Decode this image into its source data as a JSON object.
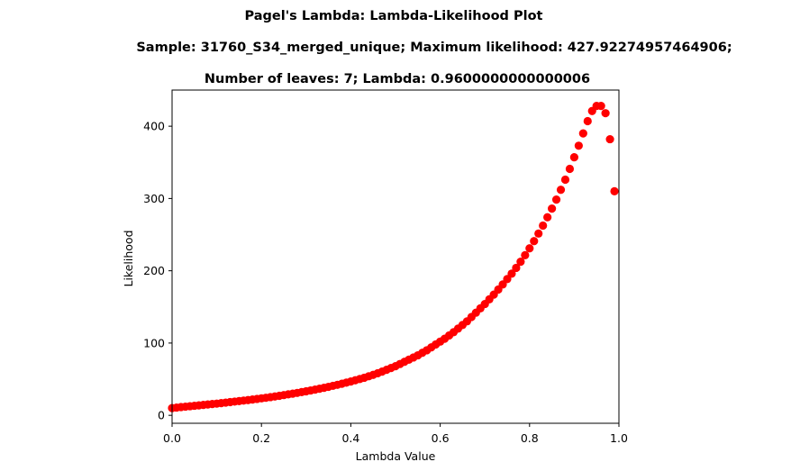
{
  "chart_data": {
    "type": "scatter",
    "title_lines": [
      "Pagel's Lambda: Lambda-Likelihood Plot",
      "Sample: 31760_S34_merged_unique; Maximum likelihood: 427.92274957464906;",
      "Number of leaves: 7; Lambda: 0.9600000000000006"
    ],
    "xlabel": "Lambda Value",
    "ylabel": "Likelihood",
    "xlim": [
      0.0,
      1.0
    ],
    "ylim": [
      -11,
      450
    ],
    "xticks": [
      0.0,
      0.2,
      0.4,
      0.6,
      0.8,
      1.0
    ],
    "xtick_labels": [
      "0.0",
      "0.2",
      "0.4",
      "0.6",
      "0.8",
      "1.0"
    ],
    "yticks": [
      0,
      100,
      200,
      300,
      400
    ],
    "ytick_labels": [
      "0",
      "100",
      "200",
      "300",
      "400"
    ],
    "grid": false,
    "marker_color": "#ff0000",
    "series": [
      {
        "x": [
          0.0,
          0.01,
          0.02,
          0.03,
          0.04,
          0.05,
          0.06,
          0.07,
          0.08,
          0.09,
          0.1,
          0.11,
          0.12,
          0.13,
          0.14,
          0.15,
          0.16,
          0.17,
          0.18,
          0.19,
          0.2,
          0.21,
          0.22,
          0.23,
          0.24,
          0.25,
          0.26,
          0.27,
          0.28,
          0.29,
          0.3,
          0.31,
          0.32,
          0.33,
          0.34,
          0.35,
          0.36,
          0.37,
          0.38,
          0.39,
          0.4,
          0.41,
          0.42,
          0.43,
          0.44,
          0.45,
          0.46,
          0.47,
          0.48,
          0.49,
          0.5,
          0.51,
          0.52,
          0.53,
          0.54,
          0.55,
          0.56,
          0.57,
          0.58,
          0.59,
          0.6,
          0.61,
          0.62,
          0.63,
          0.64,
          0.65,
          0.66,
          0.67,
          0.68,
          0.69,
          0.7,
          0.71,
          0.72,
          0.73,
          0.74,
          0.75,
          0.76,
          0.77,
          0.78,
          0.79,
          0.8,
          0.81,
          0.82,
          0.83,
          0.84,
          0.85,
          0.86,
          0.87,
          0.88,
          0.89,
          0.9,
          0.91,
          0.92,
          0.93,
          0.94,
          0.95,
          0.96,
          0.97,
          0.98,
          0.99
        ],
        "y": [
          10,
          10.7,
          11.4,
          12.0,
          12.6,
          13.2,
          13.8,
          14.4,
          15.0,
          15.6,
          16.2,
          16.9,
          17.6,
          18.3,
          19.0,
          19.7,
          20.4,
          21.1,
          21.9,
          22.7,
          23.5,
          24.3,
          25.2,
          26.1,
          27.0,
          28.0,
          29.0,
          30.0,
          31.0,
          32.1,
          33.2,
          34.4,
          35.6,
          36.8,
          38.1,
          39.4,
          40.8,
          42.2,
          43.7,
          45.2,
          46.8,
          48.5,
          50.2,
          52.0,
          54.0,
          56.0,
          58.2,
          60.5,
          63.0,
          65.5,
          68.0,
          71.0,
          74.0,
          77.0,
          80.0,
          83.0,
          86.5,
          90.0,
          94.0,
          98.0,
          102,
          106,
          110.5,
          115,
          120,
          125,
          130,
          136,
          142,
          148,
          154,
          160.5,
          167,
          174,
          181,
          188.5,
          196,
          204,
          212.5,
          221.5,
          231,
          241,
          251.5,
          262.5,
          274,
          286,
          298.5,
          312,
          326,
          341,
          357,
          373,
          390,
          407,
          421,
          428,
          428,
          418,
          382,
          310
        ]
      }
    ]
  }
}
